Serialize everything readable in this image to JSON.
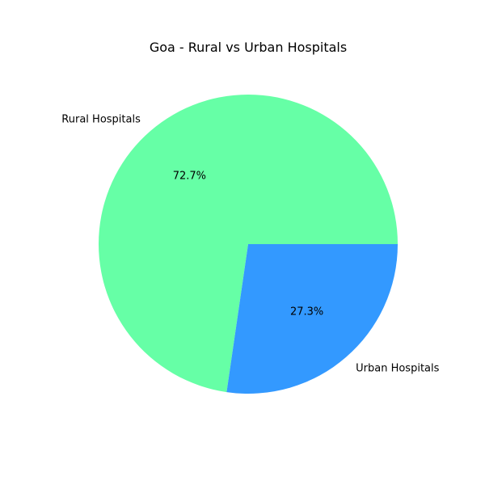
{
  "chart_data": {
    "type": "pie",
    "title": "Goa - Rural vs Urban Hospitals",
    "labels": [
      "Rural Hospitals",
      "Urban Hospitals"
    ],
    "values": [
      72.7,
      27.3
    ],
    "percent_labels": [
      "72.7%",
      "27.3%"
    ],
    "colors": [
      "#66ffa6",
      "#3399ff"
    ],
    "start_angle_deg": 0,
    "direction": "counterclockwise",
    "legend": "none"
  }
}
